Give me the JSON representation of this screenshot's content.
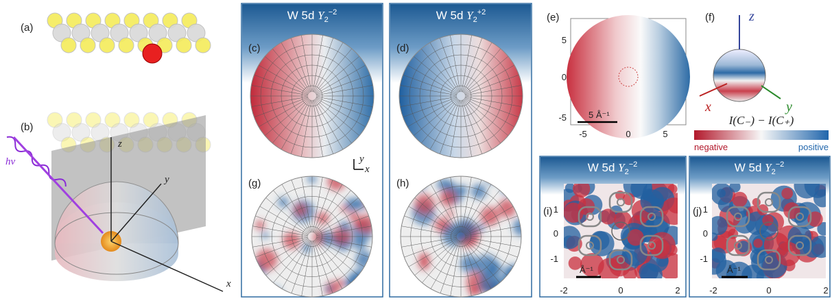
{
  "panel_labels": [
    "(a)",
    "(b)",
    "(c)",
    "(d)",
    "(e)",
    "(f)",
    "(g)",
    "(h)",
    "(i)",
    "(j)"
  ],
  "titles": {
    "c": {
      "prefix": "W 5d",
      "symbol": "Y",
      "sub": "2",
      "sup": "−2"
    },
    "d": {
      "prefix": "W 5d",
      "symbol": "Y",
      "sub": "2",
      "sup": "+2"
    },
    "i": {
      "prefix": "W 5d",
      "symbol": "Y",
      "sub": "2",
      "sup": "−2"
    },
    "j": {
      "prefix": "W 5d",
      "symbol": "Y",
      "sub": "2",
      "sup": "−2"
    }
  },
  "geometry": {
    "photon": "hν",
    "x": "x",
    "y": "y",
    "z": "z"
  },
  "inset_axes": {
    "x": "x",
    "y": "y"
  },
  "sphere_axes": {
    "x": "x",
    "y": "y",
    "z": "z"
  },
  "panel_e": {
    "xticks": [
      "-5",
      "0",
      "5"
    ],
    "yticks": [
      "5",
      "0",
      "-5"
    ],
    "scale_bar": "5 Å⁻¹"
  },
  "panel_i": {
    "xticks": [
      "-2",
      "0",
      "2"
    ],
    "yticks": [
      "1",
      "0",
      "-1"
    ],
    "scale_bar": "Å⁻¹"
  },
  "panel_j": {
    "xticks": [
      "-2",
      "0",
      "2"
    ],
    "yticks": [
      "1",
      "0",
      "-1"
    ],
    "scale_bar": "Å⁻¹"
  },
  "colorbar": {
    "label": "I(C₋) − I(C₊)",
    "low": "negative",
    "high": "positive"
  }
}
